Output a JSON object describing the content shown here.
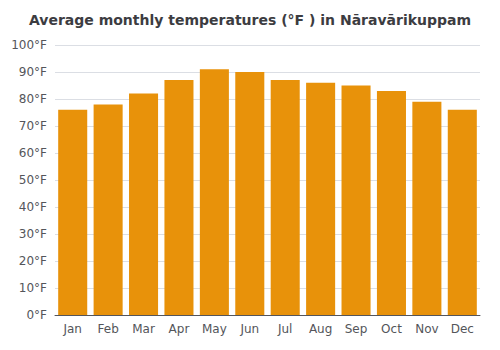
{
  "chart_data": {
    "type": "bar",
    "title": "Average monthly temperatures (°F ) in Nāravārikuppam",
    "categories": [
      "Jan",
      "Feb",
      "Mar",
      "Apr",
      "May",
      "Jun",
      "Jul",
      "Aug",
      "Sep",
      "Oct",
      "Nov",
      "Dec"
    ],
    "values": [
      76,
      78,
      82,
      87,
      91,
      90,
      87,
      86,
      85,
      83,
      79,
      76
    ],
    "color": "#E8920A",
    "ylim": [
      0,
      100
    ],
    "yticks": [
      {
        "value": 0,
        "label": "0°F"
      },
      {
        "value": 10,
        "label": "10°F"
      },
      {
        "value": 20,
        "label": "20°F"
      },
      {
        "value": 30,
        "label": "30°F"
      },
      {
        "value": 40,
        "label": "40°F"
      },
      {
        "value": 50,
        "label": "50°F"
      },
      {
        "value": 60,
        "label": "60°F"
      },
      {
        "value": 70,
        "label": "70°F"
      },
      {
        "value": 80,
        "label": "80°F"
      },
      {
        "value": 90,
        "label": "90°F"
      },
      {
        "value": 100,
        "label": "100°F"
      }
    ],
    "grid": true
  }
}
